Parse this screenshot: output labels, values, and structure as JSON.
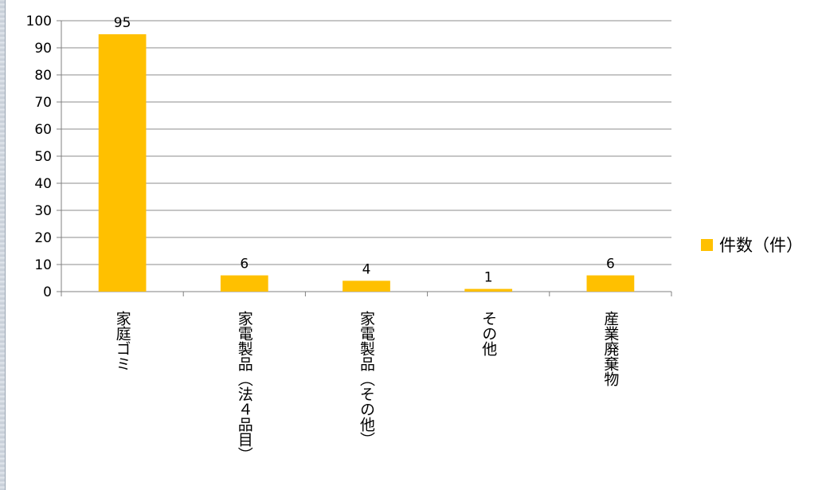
{
  "chart_data": {
    "type": "bar",
    "categories": [
      "家庭ゴミ",
      "家電製品（法４品目）",
      "家電製品（その他）",
      "その他",
      "産業廃棄物"
    ],
    "series": [
      {
        "name": "件数（件）",
        "values": [
          95,
          6,
          4,
          1,
          6
        ]
      }
    ],
    "title": "",
    "xlabel": "",
    "ylabel": "",
    "ylim": [
      0,
      100
    ],
    "yticks": [
      0,
      10,
      20,
      30,
      40,
      50,
      60,
      70,
      80,
      90,
      100
    ],
    "grid": true,
    "legend": "right",
    "data_labels": true,
    "colors": {
      "bar": "#FFC000",
      "grid": "#8c8c8c",
      "axis": "#808080"
    }
  }
}
